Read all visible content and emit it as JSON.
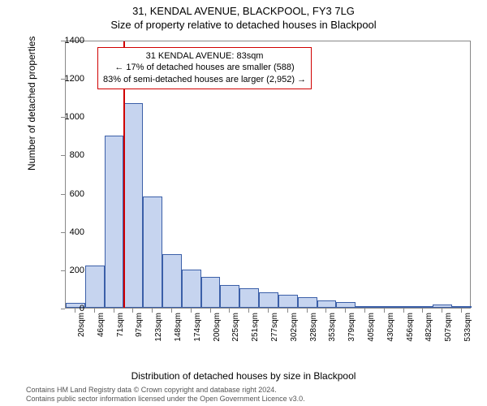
{
  "title_line1": "31, KENDAL AVENUE, BLACKPOOL, FY3 7LG",
  "title_line2": "Size of property relative to detached houses in Blackpool",
  "ylabel": "Number of detached properties",
  "xlabel": "Distribution of detached houses by size in Blackpool",
  "chart": {
    "type": "histogram",
    "bar_fill": "#c6d4ef",
    "bar_border": "#3b5fa8",
    "background_color": "#ffffff",
    "border_color": "#888888",
    "marker_color": "#d00000",
    "marker_x_value": 83,
    "ylim": [
      0,
      1400
    ],
    "ytick_step": 200,
    "yticks": [
      0,
      200,
      400,
      600,
      800,
      1000,
      1200,
      1400
    ],
    "x_labels": [
      "20sqm",
      "46sqm",
      "71sqm",
      "97sqm",
      "123sqm",
      "148sqm",
      "174sqm",
      "200sqm",
      "225sqm",
      "251sqm",
      "277sqm",
      "302sqm",
      "328sqm",
      "353sqm",
      "379sqm",
      "405sqm",
      "430sqm",
      "456sqm",
      "482sqm",
      "507sqm",
      "533sqm"
    ],
    "values": [
      25,
      220,
      900,
      1070,
      580,
      280,
      200,
      160,
      120,
      100,
      80,
      70,
      55,
      40,
      30,
      10,
      10,
      8,
      5,
      15,
      5
    ],
    "label_fontsize": 12,
    "tick_fontsize": 11
  },
  "callout": {
    "line1": "31 KENDAL AVENUE: 83sqm",
    "line2": "← 17% of detached houses are smaller (588)",
    "line3": "83% of semi-detached houses are larger (2,952) →",
    "border_color": "#d00000",
    "fontsize": 11
  },
  "footer": {
    "line1": "Contains HM Land Registry data © Crown copyright and database right 2024.",
    "line2": "Contains public sector information licensed under the Open Government Licence v3.0.",
    "fontsize": 9,
    "color": "#555555"
  }
}
